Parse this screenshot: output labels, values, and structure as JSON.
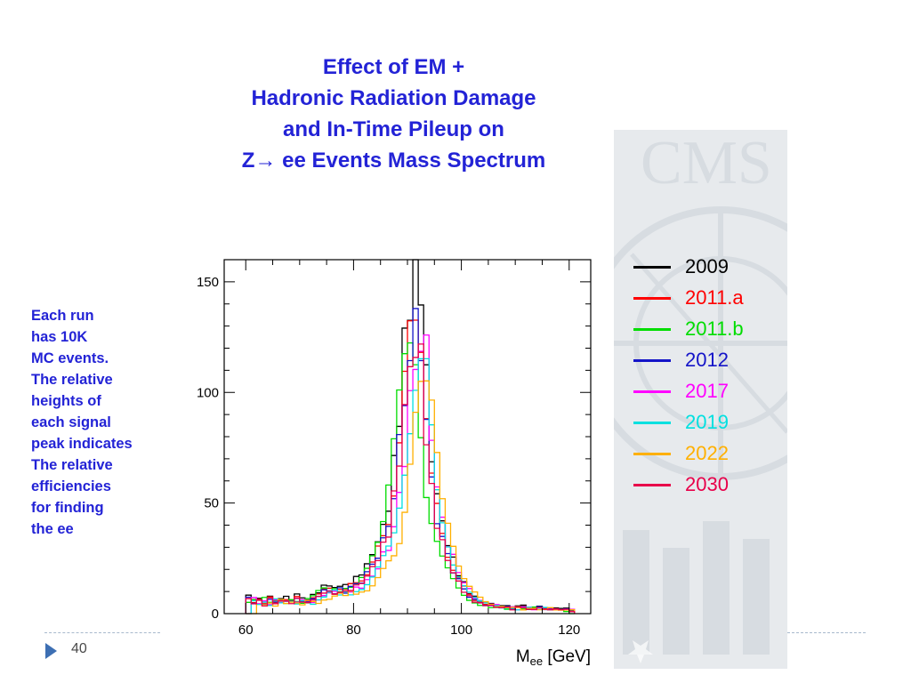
{
  "title_lines": [
    "Effect of EM +",
    "Hadronic Radiation Damage",
    "and In-Time Pileup on",
    "Z→ ee Events Mass Spectrum"
  ],
  "side_note_lines": [
    "Each run",
    "has 10K",
    "MC events.",
    "The relative",
    "heights of",
    "each signal",
    "peak indicates",
    "The relative",
    "efficiencies",
    "for finding",
    "the ee"
  ],
  "page_number": "40",
  "background_logo_icon": "cms-logo-watermark-icon",
  "page_marker_icon": "triangle-bullet-icon",
  "chart_data": {
    "type": "line",
    "style": "step-histogram",
    "title": "",
    "xlabel_main": "M",
    "xlabel_sub": "ee",
    "xlabel_unit": " [GeV]",
    "ylabel": "",
    "xlim": [
      56,
      124
    ],
    "ylim": [
      0,
      160
    ],
    "x_ticks": [
      60,
      80,
      100,
      120
    ],
    "y_ticks": [
      0,
      50,
      100,
      150
    ],
    "grid": false,
    "legend_position": "right, outside plot",
    "bin_width": 1,
    "x_start": 60,
    "base_values": [
      7,
      5,
      6,
      4,
      7,
      5,
      6,
      6,
      5,
      7,
      6,
      5,
      7,
      8,
      10,
      11,
      9,
      11,
      10,
      12,
      13,
      15,
      18,
      22,
      27,
      32,
      40,
      55,
      75,
      98,
      118,
      128,
      122,
      88,
      58,
      44,
      34,
      26,
      20,
      15,
      11,
      8,
      6,
      5,
      4,
      4,
      3,
      3,
      3,
      2,
      3,
      3,
      2,
      2,
      3,
      2,
      2,
      2,
      2,
      2,
      1
    ],
    "series": [
      {
        "name": "2009",
        "color": "#000000",
        "scale": 1.22,
        "shift": 0
      },
      {
        "name": "2011.a",
        "color": "#ff0000",
        "scale": 1.05,
        "shift": 0
      },
      {
        "name": "2011.b",
        "color": "#00dd00",
        "scale": 0.98,
        "shift": -1
      },
      {
        "name": "2012",
        "color": "#1414c8",
        "scale": 1.0,
        "shift": 0
      },
      {
        "name": "2017",
        "color": "#ff00ff",
        "scale": 0.96,
        "shift": 1
      },
      {
        "name": "2019",
        "color": "#00e0e0",
        "scale": 0.9,
        "shift": 1
      },
      {
        "name": "2022",
        "color": "#ffb000",
        "scale": 0.86,
        "shift": 2
      },
      {
        "name": "2030",
        "color": "#e8004a",
        "scale": 0.94,
        "shift": 0
      }
    ]
  }
}
